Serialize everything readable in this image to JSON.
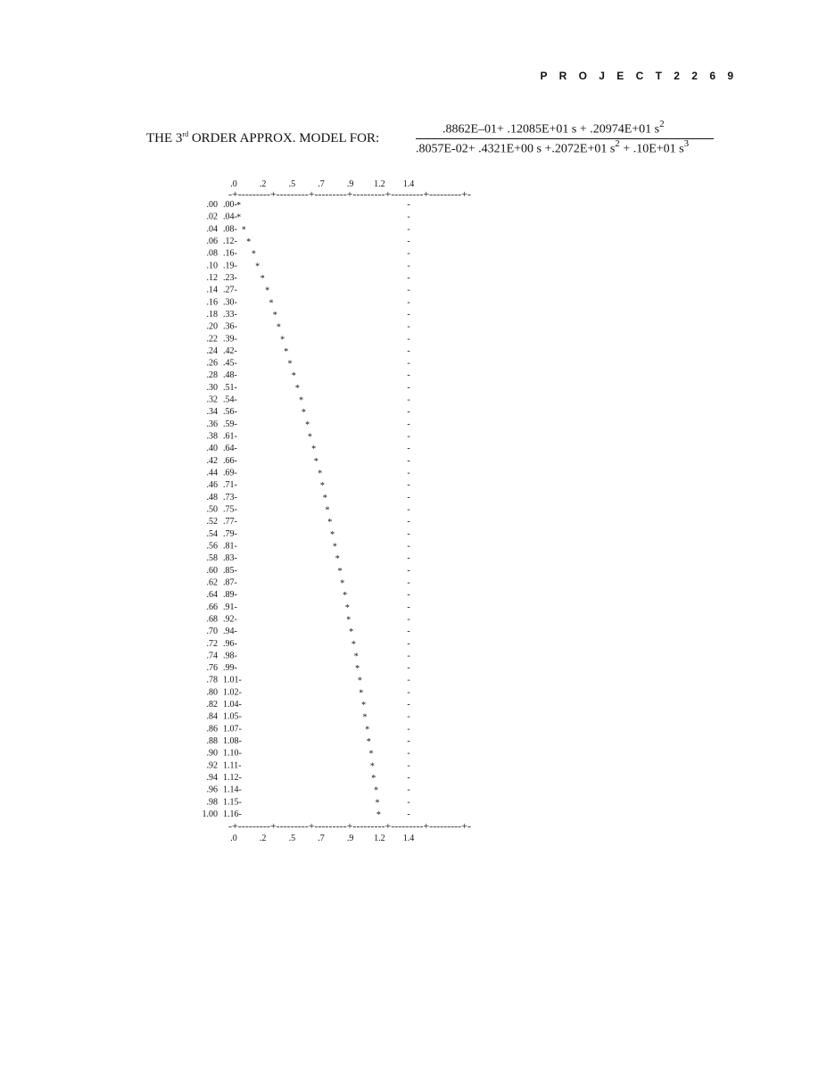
{
  "page": {
    "header": "P R O J E C T   2   2 6 9"
  },
  "formula": {
    "label_main": "THE 3",
    "label_sup": "rd",
    "label_rest": " ORDER APPROX. MODEL FOR:",
    "numerator": ".8862E–01+ .12085E+01 s + .20974E+01 s",
    "numerator_power": "2",
    "denominator_part1": ".8057E-02+ .4321E+00 s +.2072E+01 s",
    "denominator_power1": "2",
    "denominator_part2": " + .10E+01 s",
    "denominator_power2": "3"
  },
  "chart_data": {
    "type": "scatter",
    "x_tick_labels": [
      ".0",
      ".2",
      ".5",
      ".7",
      ".9",
      "1.2",
      "1.4"
    ],
    "x_tick_values": [
      0.0,
      0.233,
      0.467,
      0.7,
      0.933,
      1.167,
      1.4
    ],
    "axis_line": "-+---------+---------+---------+---------+---------+---------+-",
    "xlim": [
      0,
      1.4
    ],
    "reference_line_value": 1.4,
    "t": [
      ".00",
      ".02",
      ".04",
      ".06",
      ".08",
      ".10",
      ".12",
      ".14",
      ".16",
      ".18",
      ".20",
      ".22",
      ".24",
      ".26",
      ".28",
      ".30",
      ".32",
      ".34",
      ".36",
      ".38",
      ".40",
      ".42",
      ".44",
      ".46",
      ".48",
      ".50",
      ".52",
      ".54",
      ".56",
      ".58",
      ".60",
      ".62",
      ".64",
      ".66",
      ".68",
      ".70",
      ".72",
      ".74",
      ".76",
      ".78",
      ".80",
      ".82",
      ".84",
      ".86",
      ".88",
      ".90",
      ".92",
      ".94",
      ".96",
      ".98",
      "1.00"
    ],
    "y": [
      ".00",
      ".04",
      ".08",
      ".12",
      ".16",
      ".19",
      ".23",
      ".27",
      ".30",
      ".33",
      ".36",
      ".39",
      ".42",
      ".45",
      ".48",
      ".51",
      ".54",
      ".56",
      ".59",
      ".61",
      ".64",
      ".66",
      ".69",
      ".71",
      ".73",
      ".75",
      ".77",
      ".79",
      ".81",
      ".83",
      ".85",
      ".87",
      ".89",
      ".91",
      ".92",
      ".94",
      ".96",
      ".98",
      ".99",
      "1.01",
      "1.02",
      "1.04",
      "1.05",
      "1.07",
      "1.08",
      "1.10",
      "1.11",
      "1.12",
      "1.14",
      "1.15",
      "1.16"
    ],
    "marker": "*",
    "reference_marker": "-"
  }
}
